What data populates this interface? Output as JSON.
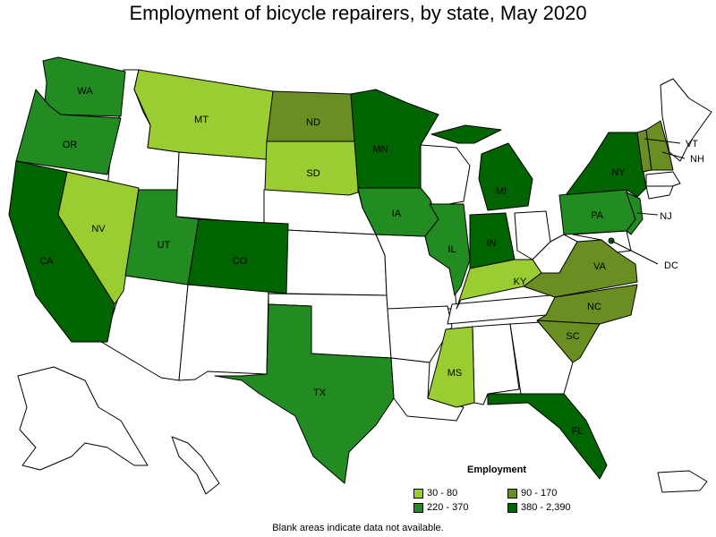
{
  "title": "Employment of bicycle repairers, by state, May 2020",
  "legend": {
    "title": "Employment",
    "items": [
      {
        "label": "30 - 80",
        "color": "#9acd32"
      },
      {
        "label": "90 - 170",
        "color": "#6b8e23"
      },
      {
        "label": "220 - 370",
        "color": "#228b22"
      },
      {
        "label": "380 - 2,390",
        "color": "#006400"
      }
    ]
  },
  "note": "Blank areas indicate data not available.",
  "states": [
    {
      "abbr": "WA",
      "range": "220 - 370"
    },
    {
      "abbr": "OR",
      "range": "220 - 370"
    },
    {
      "abbr": "CA",
      "range": "380 - 2,390"
    },
    {
      "abbr": "NV",
      "range": "30 - 80"
    },
    {
      "abbr": "MT",
      "range": "30 - 80"
    },
    {
      "abbr": "UT",
      "range": "220 - 370"
    },
    {
      "abbr": "CO",
      "range": "380 - 2,390"
    },
    {
      "abbr": "ND",
      "range": "90 - 170"
    },
    {
      "abbr": "SD",
      "range": "30 - 80"
    },
    {
      "abbr": "TX",
      "range": "220 - 370"
    },
    {
      "abbr": "MN",
      "range": "380 - 2,390"
    },
    {
      "abbr": "IA",
      "range": "220 - 370"
    },
    {
      "abbr": "IL",
      "range": "220 - 370"
    },
    {
      "abbr": "MI",
      "range": "380 - 2,390"
    },
    {
      "abbr": "IN",
      "range": "380 - 2,390"
    },
    {
      "abbr": "KY",
      "range": "30 - 80"
    },
    {
      "abbr": "MS",
      "range": "30 - 80"
    },
    {
      "abbr": "FL",
      "range": "380 - 2,390"
    },
    {
      "abbr": "NY",
      "range": "380 - 2,390"
    },
    {
      "abbr": "PA",
      "range": "220 - 370"
    },
    {
      "abbr": "NJ",
      "range": "220 - 370"
    },
    {
      "abbr": "VA",
      "range": "90 - 170"
    },
    {
      "abbr": "NC",
      "range": "90 - 170"
    },
    {
      "abbr": "SC",
      "range": "90 - 170"
    },
    {
      "abbr": "VT",
      "range": "90 - 170"
    },
    {
      "abbr": "NH",
      "range": "90 - 170"
    },
    {
      "abbr": "DC",
      "range": "380 - 2,390"
    }
  ]
}
